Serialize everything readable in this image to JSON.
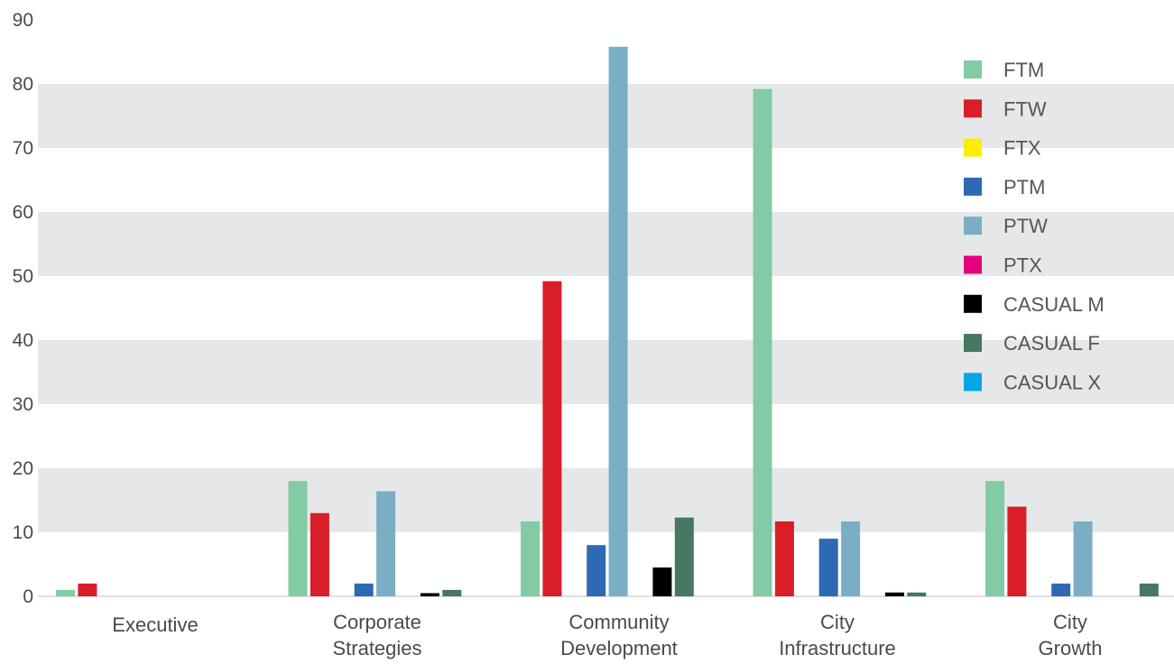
{
  "chart_data": {
    "type": "bar",
    "title": "",
    "xlabel": "",
    "ylabel": "",
    "ylim": [
      0,
      90
    ],
    "yticks": [
      0,
      10,
      20,
      30,
      40,
      50,
      60,
      70,
      80,
      90
    ],
    "grid": "alternating horizontal bands",
    "legend_position": "top-right",
    "categories": [
      [
        "Executive"
      ],
      [
        "Corporate",
        "Strategies"
      ],
      [
        "Community",
        "Development"
      ],
      [
        "City",
        "Infrastructure"
      ],
      [
        "City",
        "Growth"
      ]
    ],
    "series": [
      {
        "name": "FTM",
        "color": "#82cba4",
        "values": [
          1,
          18,
          11.7,
          79.2,
          18
        ]
      },
      {
        "name": "FTW",
        "color": "#d91e28",
        "values": [
          2,
          13,
          49.2,
          11.7,
          14
        ]
      },
      {
        "name": "FTX",
        "color": "#ffed00",
        "values": [
          0,
          0,
          0,
          0,
          0
        ]
      },
      {
        "name": "PTM",
        "color": "#2e69b3",
        "values": [
          0,
          2,
          8,
          9,
          2
        ]
      },
      {
        "name": "PTW",
        "color": "#7aaec5",
        "values": [
          0,
          16.4,
          85.8,
          11.7,
          11.7
        ]
      },
      {
        "name": "PTX",
        "color": "#e6007e",
        "values": [
          0,
          0,
          0,
          0,
          0
        ]
      },
      {
        "name": "CASUAL M",
        "color": "#000000",
        "values": [
          0,
          0.5,
          4.5,
          0.6,
          0
        ]
      },
      {
        "name": "CASUAL F",
        "color": "#457761",
        "values": [
          0,
          1,
          12.3,
          0.6,
          2
        ]
      },
      {
        "name": "CASUAL X",
        "color": "#00a6e6",
        "values": [
          0,
          0,
          0,
          0,
          0
        ]
      }
    ]
  }
}
